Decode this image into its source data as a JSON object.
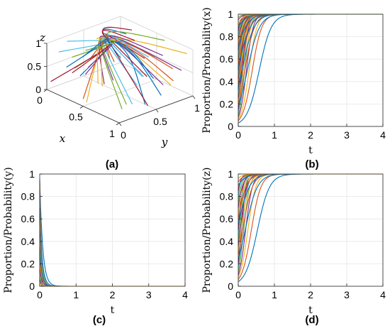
{
  "panel_labels": [
    "(a)",
    "(b)",
    "(c)",
    "(d)"
  ],
  "chart_data": [
    {
      "panel": "(a)",
      "type": "line",
      "projection": "3d",
      "xlabel": "x",
      "ylabel": "y",
      "zlabel": "z",
      "x_ticks": [
        "0",
        "0.5",
        "1"
      ],
      "y_ticks": [
        "0",
        "0.5",
        "1"
      ],
      "z_ticks": [
        "0",
        "0.5",
        "1"
      ],
      "xlim": [
        0,
        1
      ],
      "ylim": [
        0,
        1
      ],
      "zlim": [
        0,
        1
      ],
      "grid": true,
      "convergence_point": {
        "x": 1,
        "y": 0,
        "z": 1
      },
      "trajectory_count": 50
    },
    {
      "panel": "(b)",
      "type": "line",
      "xlabel": "t",
      "ylabel": "Proportion/Probability(x)",
      "xlim": [
        0,
        4
      ],
      "ylim": [
        0,
        1
      ],
      "x_ticks": [
        "0",
        "1",
        "2",
        "3",
        "4"
      ],
      "y_ticks": [
        "0",
        "0.2",
        "0.4",
        "0.6",
        "0.8",
        "1"
      ],
      "grid": true,
      "trend": "rising",
      "initial_values": [
        0.03,
        0.05,
        0.06,
        0.08,
        0.1,
        0.12,
        0.15,
        0.18,
        0.2,
        0.22,
        0.25,
        0.28,
        0.3,
        0.33,
        0.35,
        0.38,
        0.4,
        0.42,
        0.45,
        0.48,
        0.5,
        0.52,
        0.55,
        0.58,
        0.6,
        0.62,
        0.65,
        0.68,
        0.7,
        0.72,
        0.75,
        0.78,
        0.8,
        0.82,
        0.85,
        0.88,
        0.9,
        0.92,
        0.95,
        0.97
      ],
      "final_value": 1
    },
    {
      "panel": "(c)",
      "type": "line",
      "xlabel": "t",
      "ylabel": "Proportion/Probability(y)",
      "xlim": [
        0,
        4
      ],
      "ylim": [
        0,
        1
      ],
      "x_ticks": [
        "0",
        "1",
        "2",
        "3",
        "4"
      ],
      "y_ticks": [
        "0",
        "0.2",
        "0.4",
        "0.6",
        "0.8",
        "1"
      ],
      "grid": true,
      "trend": "falling",
      "initial_values": [
        0.95,
        0.92,
        0.9,
        0.85,
        0.8,
        0.75,
        0.7,
        0.65,
        0.6,
        0.55,
        0.5,
        0.45,
        0.4,
        0.35,
        0.3,
        0.25,
        0.2,
        0.15,
        0.1,
        0.08,
        0.06,
        0.05,
        0.04,
        0.03
      ],
      "final_value": 0
    },
    {
      "panel": "(d)",
      "type": "line",
      "xlabel": "t",
      "ylabel": "Proportion/Probability(z)",
      "xlim": [
        0,
        4
      ],
      "ylim": [
        0,
        1
      ],
      "x_ticks": [
        "0",
        "1",
        "2",
        "3",
        "4"
      ],
      "y_ticks": [
        "0",
        "0.2",
        "0.4",
        "0.6",
        "0.8",
        "1"
      ],
      "grid": true,
      "trend": "rising",
      "initial_values": [
        0.04,
        0.06,
        0.08,
        0.1,
        0.13,
        0.16,
        0.2,
        0.24,
        0.28,
        0.32,
        0.36,
        0.4,
        0.45,
        0.5,
        0.55,
        0.6,
        0.65,
        0.7,
        0.75,
        0.8,
        0.85,
        0.9,
        0.93,
        0.96
      ],
      "final_value": 1
    }
  ],
  "series_colors": [
    "#0072bd",
    "#d95319",
    "#edb120",
    "#7e2f8e",
    "#77ac30",
    "#4dbeee",
    "#a2142f"
  ]
}
